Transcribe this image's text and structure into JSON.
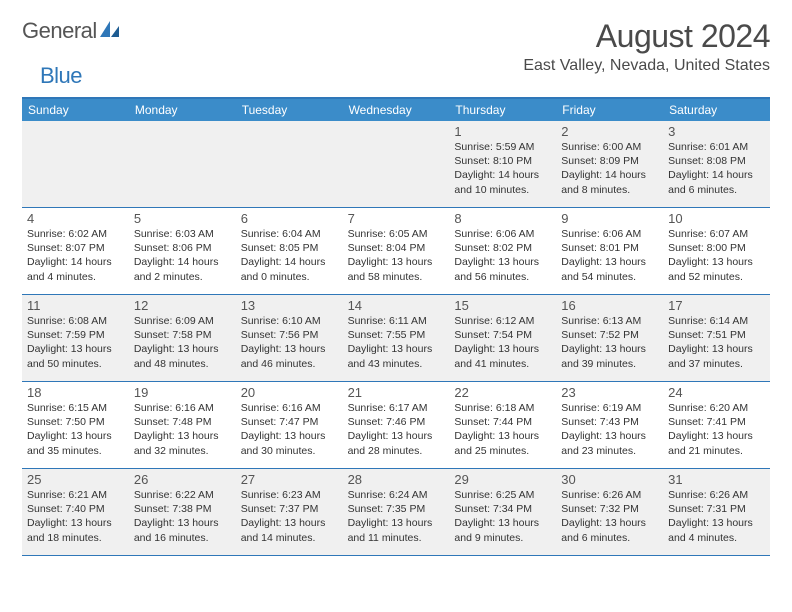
{
  "brand": {
    "part1": "General",
    "part2": "Blue"
  },
  "title": "August 2024",
  "location": "East Valley, Nevada, United States",
  "colors": {
    "header_bar": "#3b8cc9",
    "border": "#2f77b8",
    "alt_row": "#f0f0f0",
    "text": "#333333",
    "title_text": "#4a4a4a"
  },
  "weekdays": [
    "Sunday",
    "Monday",
    "Tuesday",
    "Wednesday",
    "Thursday",
    "Friday",
    "Saturday"
  ],
  "weeks": [
    [
      {
        "n": "",
        "sr": "",
        "ss": "",
        "dl": ""
      },
      {
        "n": "",
        "sr": "",
        "ss": "",
        "dl": ""
      },
      {
        "n": "",
        "sr": "",
        "ss": "",
        "dl": ""
      },
      {
        "n": "",
        "sr": "",
        "ss": "",
        "dl": ""
      },
      {
        "n": "1",
        "sr": "Sunrise: 5:59 AM",
        "ss": "Sunset: 8:10 PM",
        "dl": "Daylight: 14 hours and 10 minutes."
      },
      {
        "n": "2",
        "sr": "Sunrise: 6:00 AM",
        "ss": "Sunset: 8:09 PM",
        "dl": "Daylight: 14 hours and 8 minutes."
      },
      {
        "n": "3",
        "sr": "Sunrise: 6:01 AM",
        "ss": "Sunset: 8:08 PM",
        "dl": "Daylight: 14 hours and 6 minutes."
      }
    ],
    [
      {
        "n": "4",
        "sr": "Sunrise: 6:02 AM",
        "ss": "Sunset: 8:07 PM",
        "dl": "Daylight: 14 hours and 4 minutes."
      },
      {
        "n": "5",
        "sr": "Sunrise: 6:03 AM",
        "ss": "Sunset: 8:06 PM",
        "dl": "Daylight: 14 hours and 2 minutes."
      },
      {
        "n": "6",
        "sr": "Sunrise: 6:04 AM",
        "ss": "Sunset: 8:05 PM",
        "dl": "Daylight: 14 hours and 0 minutes."
      },
      {
        "n": "7",
        "sr": "Sunrise: 6:05 AM",
        "ss": "Sunset: 8:04 PM",
        "dl": "Daylight: 13 hours and 58 minutes."
      },
      {
        "n": "8",
        "sr": "Sunrise: 6:06 AM",
        "ss": "Sunset: 8:02 PM",
        "dl": "Daylight: 13 hours and 56 minutes."
      },
      {
        "n": "9",
        "sr": "Sunrise: 6:06 AM",
        "ss": "Sunset: 8:01 PM",
        "dl": "Daylight: 13 hours and 54 minutes."
      },
      {
        "n": "10",
        "sr": "Sunrise: 6:07 AM",
        "ss": "Sunset: 8:00 PM",
        "dl": "Daylight: 13 hours and 52 minutes."
      }
    ],
    [
      {
        "n": "11",
        "sr": "Sunrise: 6:08 AM",
        "ss": "Sunset: 7:59 PM",
        "dl": "Daylight: 13 hours and 50 minutes."
      },
      {
        "n": "12",
        "sr": "Sunrise: 6:09 AM",
        "ss": "Sunset: 7:58 PM",
        "dl": "Daylight: 13 hours and 48 minutes."
      },
      {
        "n": "13",
        "sr": "Sunrise: 6:10 AM",
        "ss": "Sunset: 7:56 PM",
        "dl": "Daylight: 13 hours and 46 minutes."
      },
      {
        "n": "14",
        "sr": "Sunrise: 6:11 AM",
        "ss": "Sunset: 7:55 PM",
        "dl": "Daylight: 13 hours and 43 minutes."
      },
      {
        "n": "15",
        "sr": "Sunrise: 6:12 AM",
        "ss": "Sunset: 7:54 PM",
        "dl": "Daylight: 13 hours and 41 minutes."
      },
      {
        "n": "16",
        "sr": "Sunrise: 6:13 AM",
        "ss": "Sunset: 7:52 PM",
        "dl": "Daylight: 13 hours and 39 minutes."
      },
      {
        "n": "17",
        "sr": "Sunrise: 6:14 AM",
        "ss": "Sunset: 7:51 PM",
        "dl": "Daylight: 13 hours and 37 minutes."
      }
    ],
    [
      {
        "n": "18",
        "sr": "Sunrise: 6:15 AM",
        "ss": "Sunset: 7:50 PM",
        "dl": "Daylight: 13 hours and 35 minutes."
      },
      {
        "n": "19",
        "sr": "Sunrise: 6:16 AM",
        "ss": "Sunset: 7:48 PM",
        "dl": "Daylight: 13 hours and 32 minutes."
      },
      {
        "n": "20",
        "sr": "Sunrise: 6:16 AM",
        "ss": "Sunset: 7:47 PM",
        "dl": "Daylight: 13 hours and 30 minutes."
      },
      {
        "n": "21",
        "sr": "Sunrise: 6:17 AM",
        "ss": "Sunset: 7:46 PM",
        "dl": "Daylight: 13 hours and 28 minutes."
      },
      {
        "n": "22",
        "sr": "Sunrise: 6:18 AM",
        "ss": "Sunset: 7:44 PM",
        "dl": "Daylight: 13 hours and 25 minutes."
      },
      {
        "n": "23",
        "sr": "Sunrise: 6:19 AM",
        "ss": "Sunset: 7:43 PM",
        "dl": "Daylight: 13 hours and 23 minutes."
      },
      {
        "n": "24",
        "sr": "Sunrise: 6:20 AM",
        "ss": "Sunset: 7:41 PM",
        "dl": "Daylight: 13 hours and 21 minutes."
      }
    ],
    [
      {
        "n": "25",
        "sr": "Sunrise: 6:21 AM",
        "ss": "Sunset: 7:40 PM",
        "dl": "Daylight: 13 hours and 18 minutes."
      },
      {
        "n": "26",
        "sr": "Sunrise: 6:22 AM",
        "ss": "Sunset: 7:38 PM",
        "dl": "Daylight: 13 hours and 16 minutes."
      },
      {
        "n": "27",
        "sr": "Sunrise: 6:23 AM",
        "ss": "Sunset: 7:37 PM",
        "dl": "Daylight: 13 hours and 14 minutes."
      },
      {
        "n": "28",
        "sr": "Sunrise: 6:24 AM",
        "ss": "Sunset: 7:35 PM",
        "dl": "Daylight: 13 hours and 11 minutes."
      },
      {
        "n": "29",
        "sr": "Sunrise: 6:25 AM",
        "ss": "Sunset: 7:34 PM",
        "dl": "Daylight: 13 hours and 9 minutes."
      },
      {
        "n": "30",
        "sr": "Sunrise: 6:26 AM",
        "ss": "Sunset: 7:32 PM",
        "dl": "Daylight: 13 hours and 6 minutes."
      },
      {
        "n": "31",
        "sr": "Sunrise: 6:26 AM",
        "ss": "Sunset: 7:31 PM",
        "dl": "Daylight: 13 hours and 4 minutes."
      }
    ]
  ]
}
